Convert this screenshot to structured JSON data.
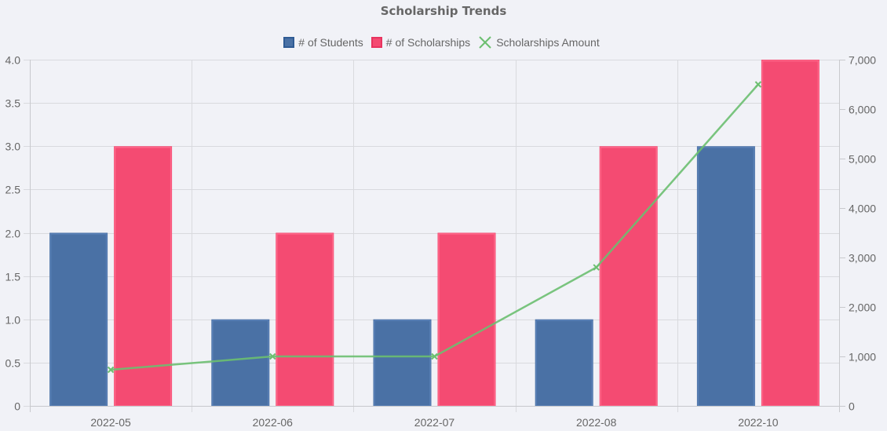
{
  "chart_data": {
    "type": "bar",
    "title": "Scholarship Trends",
    "categories": [
      "2022-05",
      "2022-06",
      "2022-07",
      "2022-08",
      "2022-10"
    ],
    "series": [
      {
        "name": "# of Students",
        "type": "bar",
        "axis": "left",
        "values": [
          2,
          1,
          1,
          1,
          3
        ],
        "color": "#4a71a5",
        "border_color": "#5b82b8"
      },
      {
        "name": "# of Scholarships",
        "type": "bar",
        "axis": "left",
        "values": [
          3,
          2,
          2,
          3,
          4
        ],
        "color": "#f44b72",
        "border_color": "#ff6a8c"
      },
      {
        "name": "Scholarships Amount",
        "type": "line",
        "axis": "right",
        "marker": "cross",
        "values": [
          730,
          1000,
          1000,
          2800,
          6500
        ],
        "color": "#6cbf70"
      }
    ],
    "xlabel": "",
    "ylabel_left": "",
    "ylabel_right": "",
    "ylim_left": [
      0,
      4
    ],
    "yticks_left": [
      "0",
      "0.5",
      "1.0",
      "1.5",
      "2.0",
      "2.5",
      "3.0",
      "3.5",
      "4.0"
    ],
    "ylim_right": [
      0,
      7000
    ],
    "yticks_right": [
      "0",
      "1,000",
      "2,000",
      "3,000",
      "4,000",
      "5,000",
      "6,000",
      "7,000"
    ],
    "legend_position": "top",
    "grid": true
  },
  "legend": {
    "items": [
      {
        "label": "# of Students",
        "color": "#4a71a5",
        "border": "#2f5b94",
        "icon": "square"
      },
      {
        "label": "# of Scholarships",
        "color": "#f44b72",
        "border": "#e8345f",
        "icon": "square"
      },
      {
        "label": "Scholarships Amount",
        "color": "#6cbf70",
        "icon": "cross"
      }
    ]
  },
  "colors": {
    "background": "#f1f2f7",
    "grid": "#d9dade",
    "axis": "#c8c9cd",
    "text": "#666666"
  }
}
